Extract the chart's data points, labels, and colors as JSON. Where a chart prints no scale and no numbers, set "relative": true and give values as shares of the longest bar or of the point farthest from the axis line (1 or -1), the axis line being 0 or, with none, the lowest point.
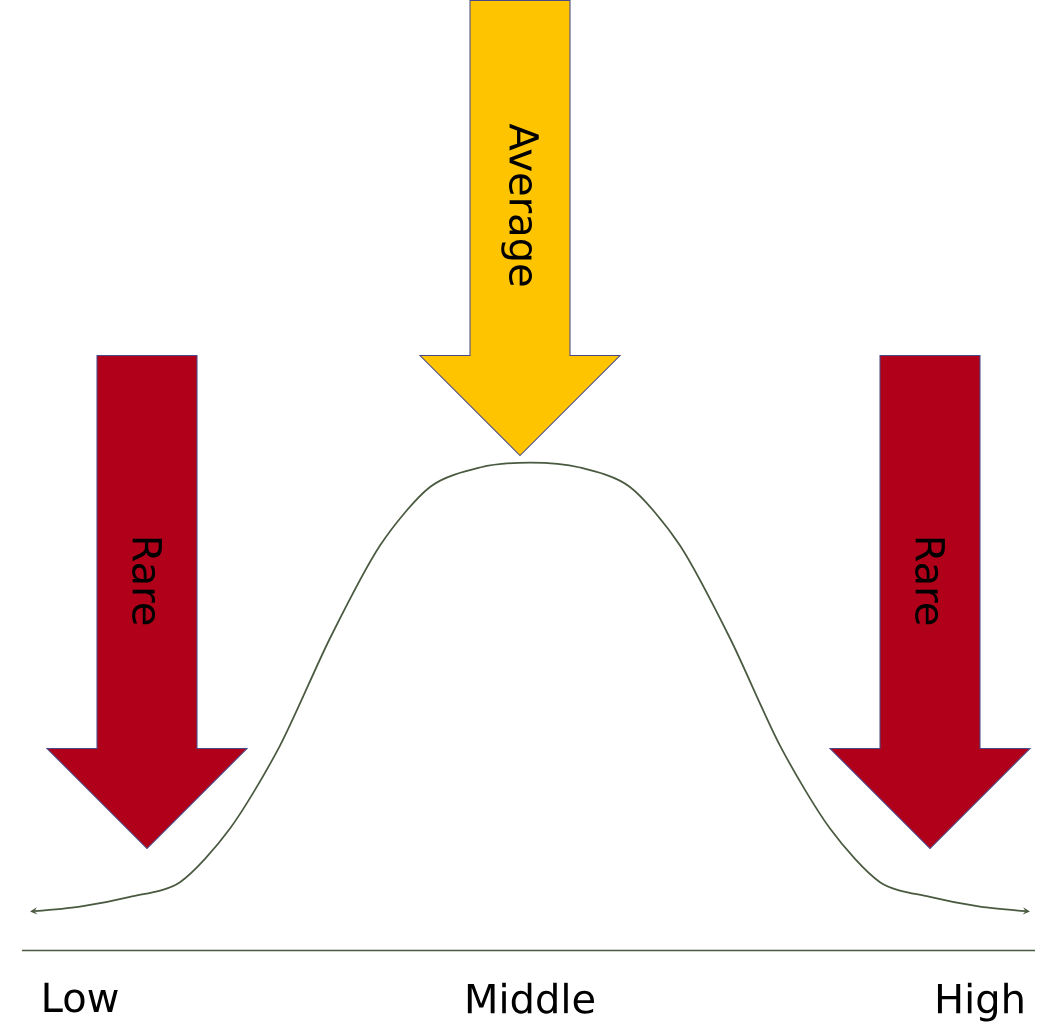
{
  "chart_data": {
    "type": "line",
    "relative": true,
    "color": "#4a5a40",
    "categories": [
      null,
      "Low",
      null,
      null,
      null,
      null,
      null,
      null,
      null,
      null,
      "Middle",
      null,
      null,
      null,
      null,
      null,
      null,
      null,
      null,
      "High",
      null
    ],
    "values": [
      0.08,
      0.09,
      0.11,
      0.14,
      0.25,
      0.42,
      0.64,
      0.83,
      0.95,
      0.99,
      1.0,
      0.99,
      0.95,
      0.83,
      0.64,
      0.42,
      0.25,
      0.14,
      0.11,
      0.09,
      0.08
    ],
    "annotations": [
      "Rare",
      "Average",
      "Rare"
    ]
  }
}
